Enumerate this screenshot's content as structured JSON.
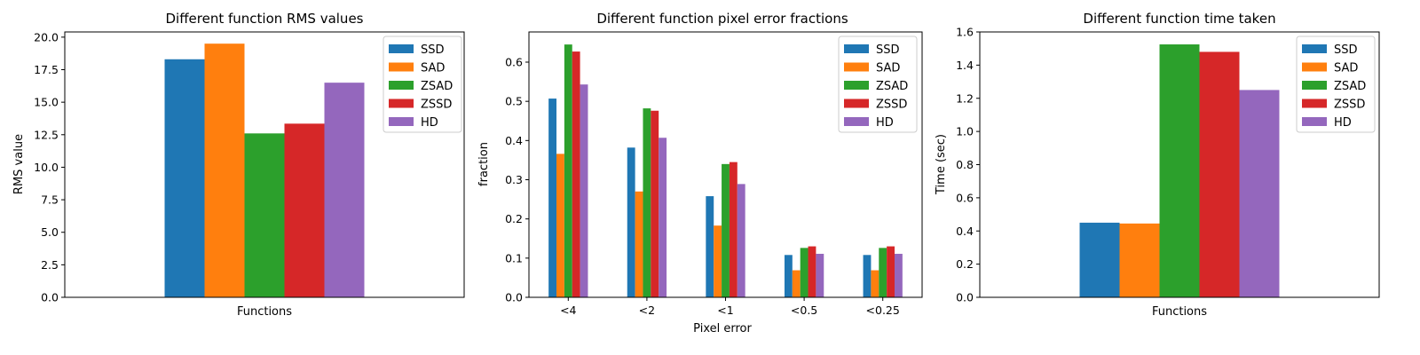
{
  "chart_data": [
    {
      "type": "bar",
      "title": "Different function RMS values",
      "xlabel": "",
      "ylabel": "RMS value",
      "categories": [
        "Functions"
      ],
      "ylim": [
        0,
        20.4
      ],
      "yticks": [
        "0.0",
        "2.5",
        "5.0",
        "7.5",
        "10.0",
        "12.5",
        "15.0",
        "17.5",
        "20.0"
      ],
      "legend_position": "top-right",
      "series": [
        {
          "name": "SSD",
          "color": "#1f77b4",
          "values": [
            18.3
          ]
        },
        {
          "name": "SAD",
          "color": "#ff7f0e",
          "values": [
            19.5
          ]
        },
        {
          "name": "ZSAD",
          "color": "#2ca02c",
          "values": [
            12.6
          ]
        },
        {
          "name": "ZSSD",
          "color": "#d62728",
          "values": [
            13.35
          ]
        },
        {
          "name": "HD",
          "color": "#9467bd",
          "values": [
            16.5
          ]
        }
      ]
    },
    {
      "type": "bar",
      "title": "Different function pixel error fractions",
      "xlabel": "Pixel error",
      "ylabel": "fraction",
      "categories": [
        "<4",
        "<2",
        "<1",
        "<0.5",
        "<0.25"
      ],
      "ylim": [
        0,
        0.677
      ],
      "yticks": [
        "0.0",
        "0.1",
        "0.2",
        "0.3",
        "0.4",
        "0.5",
        "0.6"
      ],
      "legend_position": "top-right",
      "series": [
        {
          "name": "SSD",
          "color": "#1f77b4",
          "values": [
            0.507,
            0.382,
            0.258,
            0.108,
            0.108
          ]
        },
        {
          "name": "SAD",
          "color": "#ff7f0e",
          "values": [
            0.366,
            0.27,
            0.183,
            0.069,
            0.069
          ]
        },
        {
          "name": "ZSAD",
          "color": "#2ca02c",
          "values": [
            0.645,
            0.482,
            0.34,
            0.126,
            0.126
          ]
        },
        {
          "name": "ZSSD",
          "color": "#d62728",
          "values": [
            0.627,
            0.476,
            0.345,
            0.13,
            0.13
          ]
        },
        {
          "name": "HD",
          "color": "#9467bd",
          "values": [
            0.543,
            0.407,
            0.289,
            0.111,
            0.111
          ]
        }
      ]
    },
    {
      "type": "bar",
      "title": "Different function time taken",
      "xlabel": "",
      "ylabel": "Time (sec)",
      "categories": [
        "Functions"
      ],
      "ylim": [
        0,
        1.6
      ],
      "yticks": [
        "0.0",
        "0.2",
        "0.4",
        "0.6",
        "0.8",
        "1.0",
        "1.2",
        "1.4",
        "1.6"
      ],
      "legend_position": "top-right",
      "series": [
        {
          "name": "SSD",
          "color": "#1f77b4",
          "values": [
            0.45
          ]
        },
        {
          "name": "SAD",
          "color": "#ff7f0e",
          "values": [
            0.445
          ]
        },
        {
          "name": "ZSAD",
          "color": "#2ca02c",
          "values": [
            1.525
          ]
        },
        {
          "name": "ZSSD",
          "color": "#d62728",
          "values": [
            1.48
          ]
        },
        {
          "name": "HD",
          "color": "#9467bd",
          "values": [
            1.25
          ]
        }
      ]
    }
  ]
}
